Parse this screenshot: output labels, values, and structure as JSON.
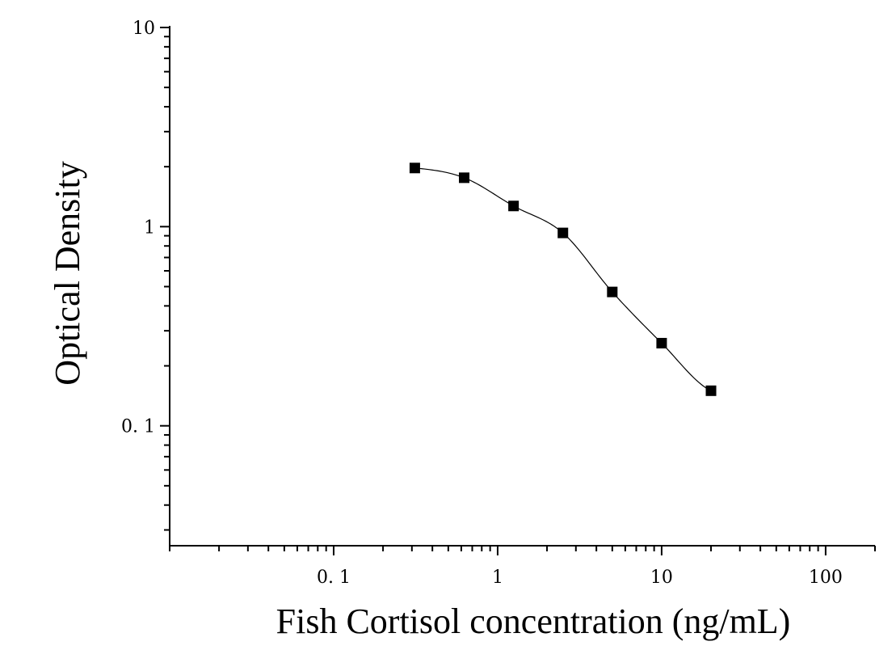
{
  "chart_data": {
    "type": "scatter",
    "xlabel": "Fish Cortisol concentration (ng/mL)",
    "ylabel": "Optical Density",
    "xscale": "log",
    "yscale": "log",
    "xlim": [
      0.01,
      200
    ],
    "ylim": [
      0.025,
      10
    ],
    "grid": false,
    "x_ticks": [
      {
        "value": 0.1,
        "label": "0. 1"
      },
      {
        "value": 1,
        "label": "1"
      },
      {
        "value": 10,
        "label": "10"
      },
      {
        "value": 100,
        "label": "100"
      }
    ],
    "y_ticks": [
      {
        "value": 0.1,
        "label": "0. 1"
      },
      {
        "value": 1,
        "label": "1"
      },
      {
        "value": 10,
        "label": "10"
      }
    ],
    "series": [
      {
        "marker": "square",
        "color": "#000000",
        "fit": "four-parameter logistic curve",
        "x": [
          0.3125,
          0.625,
          1.25,
          2.5,
          5,
          10,
          20
        ],
        "y": [
          1.97,
          1.76,
          1.27,
          0.93,
          0.47,
          0.26,
          0.15
        ]
      }
    ]
  }
}
